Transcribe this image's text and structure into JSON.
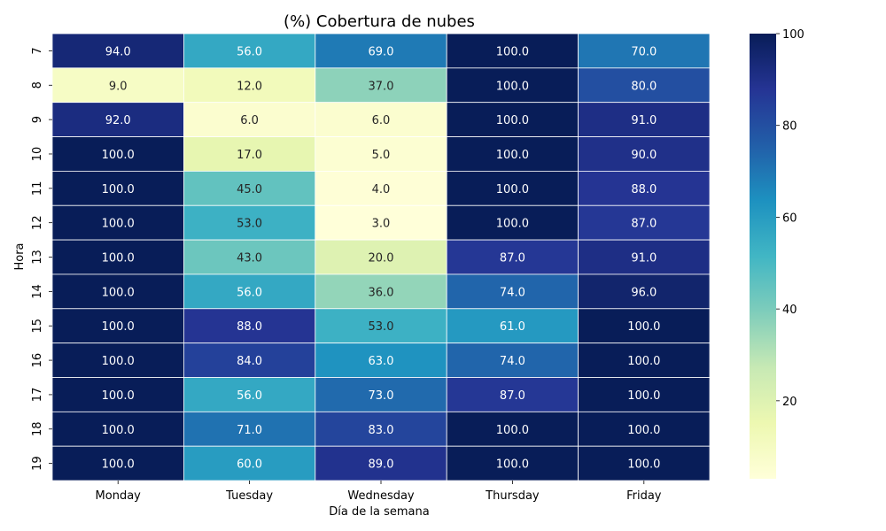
{
  "chart_data": {
    "type": "heatmap",
    "title": "(%) Cobertura de nubes",
    "xlabel": "Día de la semana",
    "ylabel": "Hora",
    "x_categories": [
      "Monday",
      "Tuesday",
      "Wednesday",
      "Thursday",
      "Friday"
    ],
    "y_categories": [
      "7",
      "8",
      "9",
      "10",
      "11",
      "12",
      "13",
      "14",
      "15",
      "16",
      "17",
      "18",
      "19"
    ],
    "values": [
      [
        94.0,
        56.0,
        69.0,
        100.0,
        70.0
      ],
      [
        9.0,
        12.0,
        37.0,
        100.0,
        80.0
      ],
      [
        92.0,
        6.0,
        6.0,
        100.0,
        91.0
      ],
      [
        100.0,
        17.0,
        5.0,
        100.0,
        90.0
      ],
      [
        100.0,
        45.0,
        4.0,
        100.0,
        88.0
      ],
      [
        100.0,
        53.0,
        3.0,
        100.0,
        87.0
      ],
      [
        100.0,
        43.0,
        20.0,
        87.0,
        91.0
      ],
      [
        100.0,
        56.0,
        36.0,
        74.0,
        96.0
      ],
      [
        100.0,
        88.0,
        53.0,
        61.0,
        100.0
      ],
      [
        100.0,
        84.0,
        63.0,
        74.0,
        100.0
      ],
      [
        100.0,
        56.0,
        73.0,
        87.0,
        100.0
      ],
      [
        100.0,
        71.0,
        83.0,
        100.0,
        100.0
      ],
      [
        100.0,
        60.0,
        89.0,
        100.0,
        100.0
      ]
    ],
    "colormap": "YlGnBu",
    "vmin": 3,
    "vmax": 100,
    "colorbar_ticks": [
      20,
      40,
      60,
      80,
      100
    ],
    "annotate": true,
    "value_format": "0.0",
    "cell_border_color": "#ffffff"
  }
}
